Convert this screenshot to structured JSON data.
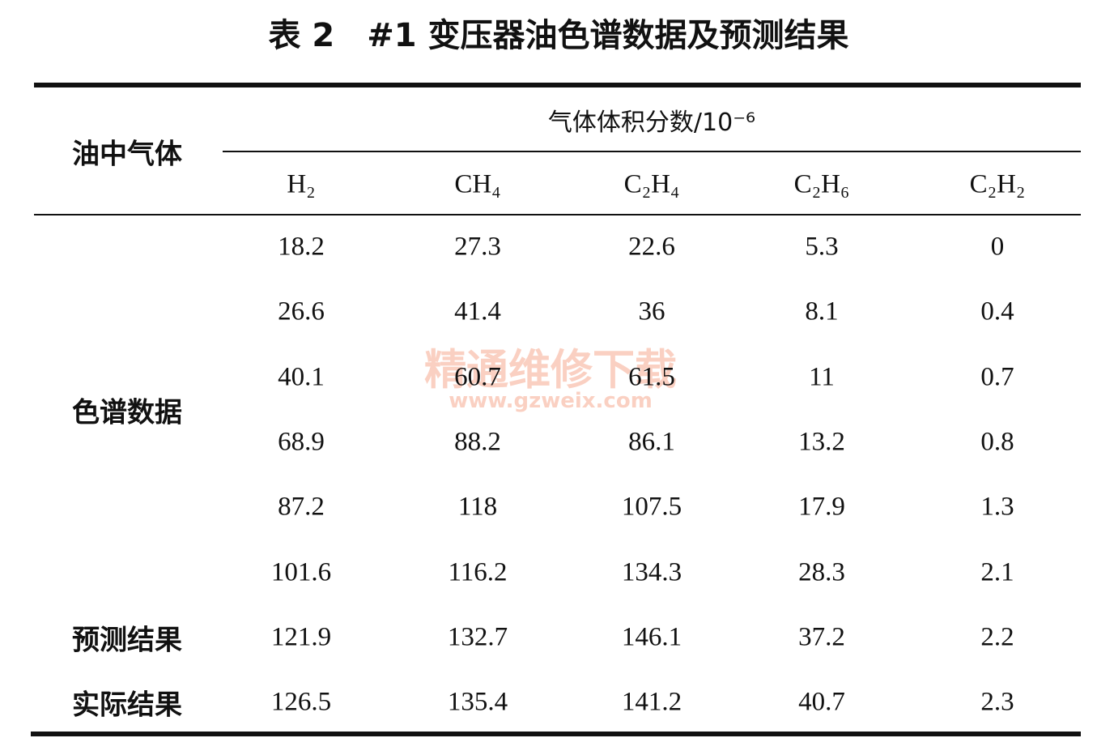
{
  "title": "表 2　#1 变压器油色谱数据及预测结果",
  "table": {
    "header": {
      "row_header": "油中气体",
      "group": "气体体积分数/10⁻⁶",
      "columns": [
        "H₂",
        "CH₄",
        "C₂H₄",
        "C₂H₆",
        "C₂H₂"
      ]
    },
    "groups": [
      {
        "label": "色谱数据",
        "rows": [
          [
            18.2,
            27.3,
            22.6,
            5.3,
            0
          ],
          [
            26.6,
            41.4,
            36,
            8.1,
            0.4
          ],
          [
            40.1,
            60.7,
            61.5,
            11,
            0.7
          ],
          [
            68.9,
            88.2,
            86.1,
            13.2,
            0.8
          ],
          [
            87.2,
            118,
            107.5,
            17.9,
            1.3
          ],
          [
            101.6,
            116.2,
            134.3,
            28.3,
            2.1
          ]
        ]
      },
      {
        "label": "预测结果",
        "rows": [
          [
            121.9,
            132.7,
            146.1,
            37.2,
            2.2
          ]
        ]
      },
      {
        "label": "实际结果",
        "rows": [
          [
            126.5,
            135.4,
            141.2,
            40.7,
            2.3
          ]
        ]
      }
    ]
  },
  "watermark": {
    "text": "精通维修下载",
    "url": "www.gzweix.com"
  }
}
